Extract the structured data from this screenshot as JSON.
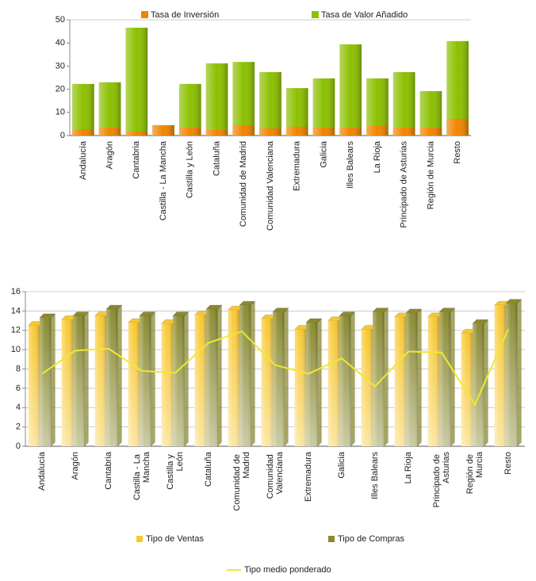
{
  "chart_data": [
    {
      "type": "bar",
      "overlap": true,
      "grid": false,
      "categories": [
        "Andalucía",
        "Aragón",
        "Cantabria",
        "Castilla - La Mancha",
        "Castilla y León",
        "Cataluña",
        "Comunidad de Madrid",
        "Comunidad Valenciana",
        "Extremadura",
        "Galicia",
        "Illes Balears",
        "La Rioja",
        "Principado de Asturias",
        "Región de Murcia",
        "Resto"
      ],
      "series": [
        {
          "name": "Tasa de Valor Añadido",
          "color": "#8cc000",
          "values": [
            22.3,
            23,
            46.6,
            4.5,
            22.3,
            31.2,
            31.8,
            27.4,
            20.5,
            24.7,
            39.4,
            24.7,
            27.4,
            19.2,
            40.8
          ]
        },
        {
          "name": "Tasa de Inversión",
          "color": "#f08400",
          "values": [
            2.7,
            3.4,
            1.7,
            4.3,
            3.4,
            2.4,
            4.5,
            3.1,
            3.8,
            3.4,
            3.4,
            4.1,
            3.4,
            3.4,
            7.2
          ]
        }
      ],
      "ylim": [
        0,
        50
      ],
      "yticks": [
        0,
        10,
        20,
        30,
        40,
        50
      ]
    },
    {
      "type": "bar",
      "overlap": false,
      "grid": true,
      "categories": [
        "Andalucía",
        "Aragón",
        "Cantabria",
        "Castilla - La Mancha",
        "Castilla y León",
        "Cataluña",
        "Comunidad de Madrid",
        "Comunidad Valenciana",
        "Extremadura",
        "Galicia",
        "Illes Balears",
        "La Rioja",
        "Principado de Asturias",
        "Región de Murcia",
        "Resto"
      ],
      "series": [
        {
          "name": "Tipo de Ventas",
          "color": "#f8c830",
          "values": [
            12.5,
            13.1,
            13.5,
            12.8,
            12.7,
            13.6,
            14.1,
            13.2,
            12.1,
            13.0,
            12.1,
            13.4,
            13.4,
            11.7,
            14.6
          ]
        },
        {
          "name": "Tipo de Compras",
          "color": "#8a8a2e",
          "values": [
            13.3,
            13.5,
            14.2,
            13.5,
            13.5,
            14.2,
            14.6,
            13.9,
            12.8,
            13.5,
            13.9,
            13.8,
            13.9,
            12.7,
            14.8
          ]
        },
        {
          "name": "Tipo medio ponderado",
          "type": "line",
          "color": "#f0e830",
          "values": [
            7.5,
            9.9,
            10.1,
            7.8,
            7.6,
            10.7,
            11.9,
            8.4,
            7.5,
            9.1,
            6.2,
            9.8,
            9.7,
            4.3,
            12.1
          ]
        }
      ],
      "ylim": [
        0,
        16
      ],
      "yticks": [
        0,
        2,
        4,
        6,
        8,
        10,
        12,
        14,
        16
      ]
    }
  ]
}
